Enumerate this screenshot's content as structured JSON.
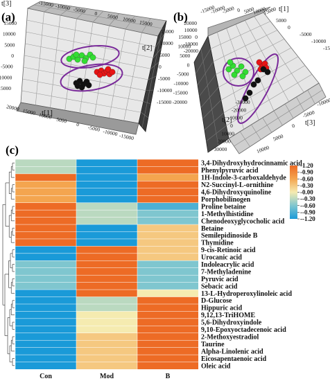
{
  "panels": {
    "a": {
      "label": "(a)",
      "axis_labels": {
        "t1": "t[1]",
        "t2": "t[2]",
        "t3": "t[3]"
      },
      "t3_ticks": [
        "15000",
        "10000",
        "5000",
        "0",
        "-5000",
        "-10000",
        "-15000"
      ],
      "t2_ticks": [
        "15000",
        "10000",
        "5000",
        "0",
        "-5000",
        "-10000",
        "-15000"
      ],
      "t1_ticks": [
        "20000",
        "15000",
        "10000",
        "5000",
        "0",
        "-5000",
        "-10000",
        "-15000"
      ],
      "top_ticks": [
        "-15000",
        "-10000",
        "-5000",
        "0",
        "5000",
        "10000",
        "15000"
      ]
    },
    "b": {
      "label": "(b)",
      "axis_labels": {
        "t1": "t[1]",
        "t2": "t[2]",
        "t3": "t[3]"
      },
      "top_ticks": [
        "-15000",
        "-10000",
        "-5000",
        "0",
        "5000",
        "10000",
        "15000"
      ],
      "t1_ticks": [
        "5000",
        "0",
        "-5000",
        "-10000",
        "-15000"
      ],
      "left_ticks": [
        "15000",
        "10000",
        "5000",
        "0",
        "-5000",
        "-10000",
        "-15000",
        "-20000"
      ],
      "upper_left_ticks": [
        "20000",
        "10000",
        "0",
        "-10000",
        "-20000"
      ],
      "t2_ticks": [
        "30000",
        "20000",
        "10000",
        "0",
        "-10000",
        "-20000",
        "-30000"
      ],
      "t3_ticks": [
        "10000",
        "5000",
        "0",
        "-5000",
        "-10000"
      ]
    },
    "c": {
      "label": "(c)"
    }
  },
  "chart_data": {
    "type": "heatmap",
    "columns": [
      "Con",
      "Mod",
      "B"
    ],
    "rows": [
      "3,4-Dihydroxyhydrocinnamic acid",
      "Phenylpyruvic acid",
      "1H-Indole-3-carboxaldehyde",
      "N2-Succinyl-L-ornithine",
      "4,6-Dihydroxyquinoline",
      "Porphobilinogen",
      "Proline betaine",
      "1-Methylhistidine",
      "Chenodeoxyglycocholic acid",
      "Betaine",
      "Semilepidinoside B",
      "Thymidine",
      "9-cis-Retinoic acid",
      "Urocanic acid",
      "Indoleacrylic acid",
      "7-Methyladenine",
      "Pyruvic acid",
      "Sebacic acid",
      "13-L-Hydroperoxylinoleic acid",
      "D-Glucose",
      "Hippuric acid",
      "9,12,13-TriHOME",
      "5,6-Dihydroxyindole",
      "9,10-Epoxyoctadecenoic acid",
      "2-Methoxyestradiol",
      "Taurine",
      "Alpha-Linolenic acid",
      "Eicosapentaenoic acid",
      "Oleic acid"
    ],
    "values": [
      [
        -0.3,
        -1.2,
        1.2
      ],
      [
        -0.3,
        -1.2,
        1.2
      ],
      [
        1.2,
        -1.2,
        0.6
      ],
      [
        0.6,
        -1.2,
        1.2
      ],
      [
        0.6,
        -1.2,
        1.2
      ],
      [
        0.6,
        -1.2,
        1.2
      ],
      [
        1.2,
        -0.3,
        -0.9
      ],
      [
        1.2,
        -0.3,
        -0.6
      ],
      [
        1.2,
        -0.3,
        -0.6
      ],
      [
        1.2,
        -1.2,
        0.3
      ],
      [
        1.2,
        -1.2,
        0.3
      ],
      [
        1.2,
        -1.2,
        0.3
      ],
      [
        -1.2,
        1.2,
        0.3
      ],
      [
        -1.2,
        1.2,
        0.3
      ],
      [
        -0.6,
        1.2,
        -0.6
      ],
      [
        -0.6,
        1.2,
        -0.6
      ],
      [
        -0.6,
        1.2,
        -0.6
      ],
      [
        -0.6,
        1.2,
        -0.6
      ],
      [
        -1.2,
        1.2,
        0.0
      ],
      [
        -1.2,
        -0.3,
        1.2
      ],
      [
        -1.2,
        -0.3,
        1.2
      ],
      [
        -1.2,
        0.0,
        1.2
      ],
      [
        -1.2,
        0.0,
        1.2
      ],
      [
        -1.2,
        0.0,
        1.2
      ],
      [
        -1.2,
        0.3,
        1.2
      ],
      [
        -1.2,
        0.3,
        1.2
      ],
      [
        -1.2,
        0.3,
        1.2
      ],
      [
        -1.2,
        0.3,
        1.2
      ],
      [
        -1.2,
        0.3,
        1.2
      ]
    ],
    "color_scale": {
      "min": -1.2,
      "max": 1.2,
      "stops": [
        "#1a9ad8",
        "#7fc6cf",
        "#f5ebb0",
        "#f4a54f",
        "#ed6b25"
      ],
      "tick_labels": [
        "1.20",
        "0.90",
        "0.60",
        "0.30",
        "0.00",
        "-0.30",
        "-0.60",
        "-0.90",
        "-1.20"
      ]
    },
    "legend_placement": "right",
    "dendrogram": "left"
  }
}
